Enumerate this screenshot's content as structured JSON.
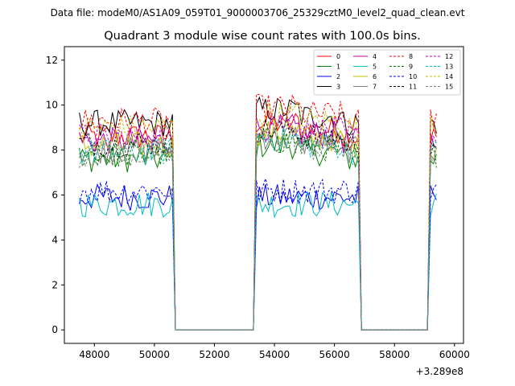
{
  "chart_data": {
    "type": "line",
    "suptitle": "Data file: modeM0/AS1A09_059T01_9000003706_25329cztM0_level2_quad_clean.evt",
    "title": "Quadrant 3 module wise count rates with 100.0s bins.",
    "xlabel": "",
    "ylabel": "",
    "x_offset_label": "+3.289e8",
    "xlim": [
      47000,
      60300
    ],
    "ylim": [
      -0.6,
      12.6
    ],
    "xticks": [
      48000,
      50000,
      52000,
      54000,
      56000,
      58000,
      60000
    ],
    "xtick_labels": [
      "48000",
      "50000",
      "52000",
      "54000",
      "56000",
      "58000",
      "60000"
    ],
    "yticks": [
      0,
      2,
      4,
      6,
      8,
      10,
      12
    ],
    "ytick_labels": [
      "0",
      "2",
      "4",
      "6",
      "8",
      "10",
      "12"
    ],
    "grid": false,
    "legend_position": "upper-right",
    "legend_columns": 4,
    "segments": [
      {
        "start": 47500,
        "end": 50600
      },
      {
        "start": 53400,
        "end": 54900
      },
      {
        "start": 54900,
        "end": 56200
      },
      {
        "start": 56200,
        "end": 56800
      },
      {
        "start": 59200,
        "end": 59400
      }
    ],
    "bin": 100,
    "series": [
      {
        "name": "0",
        "color": "#ff0000",
        "dash": false,
        "level": 8.6
      },
      {
        "name": "1",
        "color": "#008000",
        "dash": false,
        "level": 7.6
      },
      {
        "name": "2",
        "color": "#0000ff",
        "dash": false,
        "level": 5.9
      },
      {
        "name": "3",
        "color": "#000000",
        "dash": false,
        "level": 9.2
      },
      {
        "name": "4",
        "color": "#bf00bf",
        "dash": false,
        "level": 8.4
      },
      {
        "name": "5",
        "color": "#00bfbf",
        "dash": false,
        "level": 5.6
      },
      {
        "name": "6",
        "color": "#bfbf00",
        "dash": false,
        "level": 8.2
      },
      {
        "name": "7",
        "color": "#808080",
        "dash": false,
        "level": 8.0
      },
      {
        "name": "8",
        "color": "#ff0000",
        "dash": true,
        "level": 9.3
      },
      {
        "name": "9",
        "color": "#008000",
        "dash": true,
        "level": 7.8
      },
      {
        "name": "10",
        "color": "#0000ff",
        "dash": true,
        "level": 6.2
      },
      {
        "name": "11",
        "color": "#000000",
        "dash": true,
        "level": 8.3
      },
      {
        "name": "12",
        "color": "#bf00bf",
        "dash": true,
        "level": 8.6
      },
      {
        "name": "13",
        "color": "#00bfbf",
        "dash": true,
        "level": 7.9
      },
      {
        "name": "14",
        "color": "#bfbf00",
        "dash": true,
        "level": 9.0
      },
      {
        "name": "15",
        "color": "#808080",
        "dash": true,
        "level": 7.8
      }
    ]
  }
}
